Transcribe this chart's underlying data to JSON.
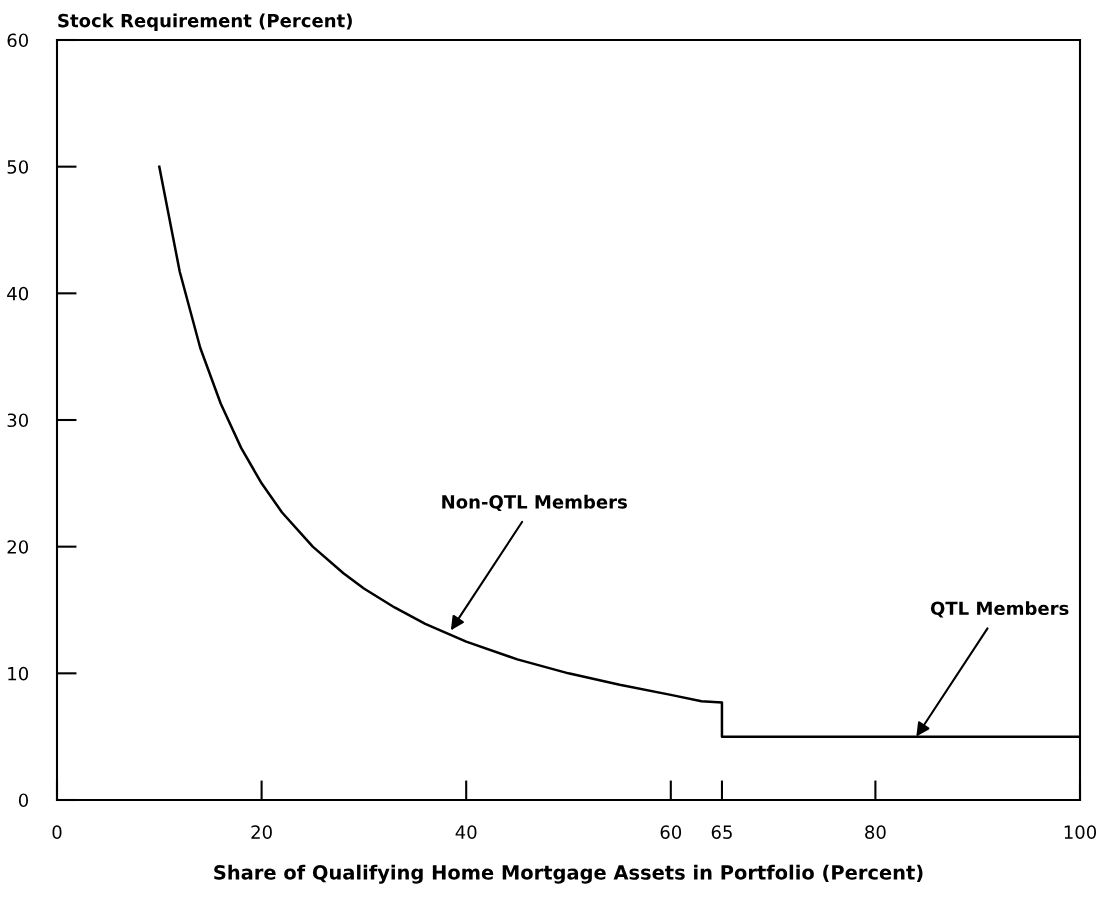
{
  "chart_data": {
    "type": "line",
    "xlabel": "Share of Qualifying Home Mortgage Assets in Portfolio (Percent)",
    "ylabel": "Stock Requirement (Percent)",
    "series": [
      {
        "color": "#000000",
        "x": [
          10,
          12,
          14,
          16,
          18,
          20,
          22,
          25,
          28,
          30,
          33,
          36,
          40,
          45,
          50,
          55,
          60,
          63,
          65,
          65,
          100
        ],
        "values": [
          50,
          41.7,
          35.7,
          31.3,
          27.8,
          25,
          22.7,
          20,
          17.9,
          16.7,
          15.2,
          13.9,
          12.5,
          11.1,
          10,
          9.1,
          8.3,
          7.8,
          7.7,
          5,
          5
        ]
      }
    ],
    "annotations": [
      {
        "text": "Non-QTL Members",
        "x": 38.5,
        "y": 13.4
      },
      {
        "text": "QTL Members",
        "x": 84,
        "y": 5
      }
    ],
    "xlim": [
      0,
      100
    ],
    "xticks": [
      0,
      20,
      40,
      60,
      65,
      80,
      100
    ],
    "ylim": [
      0,
      60
    ],
    "yticks": [
      0,
      10,
      20,
      30,
      40,
      50,
      60
    ],
    "grid": false,
    "legend": false,
    "marker": "none",
    "line_style": "solid"
  }
}
